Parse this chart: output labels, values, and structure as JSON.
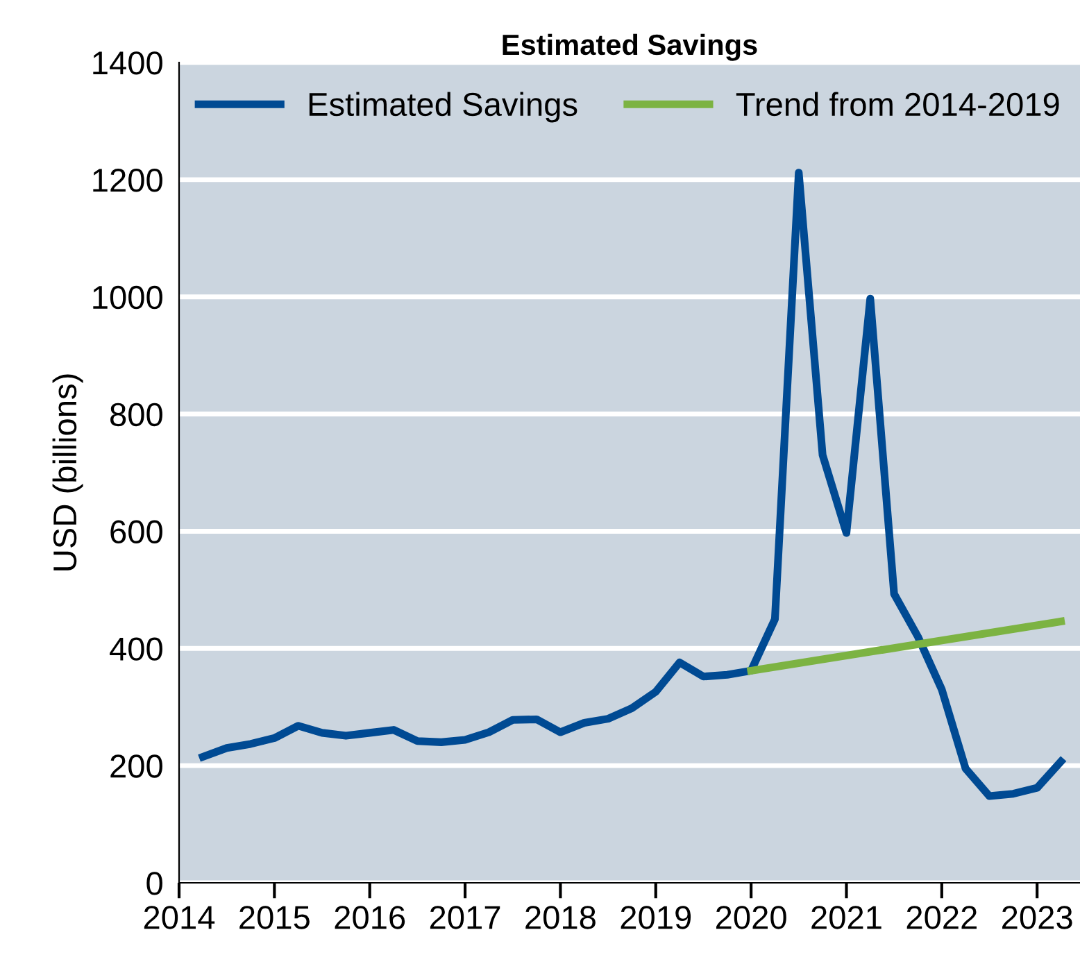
{
  "chart_data": {
    "type": "line",
    "title": "Estimated Savings",
    "ylabel": "USD (billions)",
    "xlim": [
      2014,
      2023.45
    ],
    "xticks": [
      2014,
      2015,
      2016,
      2017,
      2018,
      2019,
      2020,
      2021,
      2022,
      2023
    ],
    "ylim": [
      0,
      1400
    ],
    "yticks": [
      0,
      200,
      400,
      600,
      800,
      1000,
      1200,
      1400
    ],
    "grid": "y",
    "legend": "top",
    "series": [
      {
        "name": "Estimated Savings",
        "color": "#004a93",
        "x": [
          2014.25,
          2014.5,
          2014.75,
          2015,
          2015.25,
          2015.5,
          2015.75,
          2016,
          2016.25,
          2016.5,
          2016.75,
          2017,
          2017.25,
          2017.5,
          2017.75,
          2018,
          2018.25,
          2018.5,
          2018.75,
          2019,
          2019.25,
          2019.5,
          2019.75,
          2020,
          2020.25,
          2020.5,
          2020.75,
          2021,
          2021.25,
          2021.5,
          2021.75,
          2022,
          2022.25,
          2022.5,
          2022.75,
          2023,
          2023.25
        ],
        "values": [
          215,
          230,
          237,
          247,
          268,
          256,
          251,
          256,
          261,
          242,
          240,
          244,
          257,
          278,
          279,
          257,
          273,
          280,
          298,
          326,
          376,
          352,
          355,
          362,
          450,
          1212,
          730,
          597,
          997,
          493,
          420,
          330,
          195,
          148,
          152,
          162,
          207
        ]
      },
      {
        "name": "Trend from 2014-2019",
        "color": "#7cb342",
        "x": [
          2020,
          2023.25
        ],
        "values": [
          362,
          446
        ]
      }
    ]
  }
}
